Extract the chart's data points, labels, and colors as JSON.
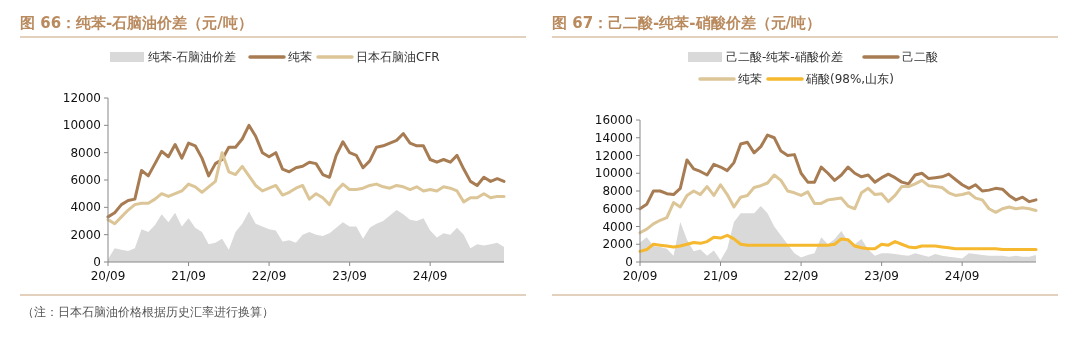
{
  "chart_data": [
    {
      "type": "line",
      "title": "图 66：纯苯-石脑油价差（元/吨）",
      "legend": "top",
      "annotations": [
        "（注：日本石脑油价格根据历史汇率进行换算）"
      ],
      "categories": [
        "20/09",
        null,
        null,
        null,
        null,
        null,
        null,
        null,
        null,
        null,
        null,
        null,
        "21/09",
        null,
        null,
        null,
        null,
        null,
        null,
        null,
        null,
        null,
        null,
        null,
        "22/09",
        null,
        null,
        null,
        null,
        null,
        null,
        null,
        null,
        null,
        null,
        null,
        "23/09",
        null,
        null,
        null,
        null,
        null,
        null,
        null,
        null,
        null,
        null,
        null,
        "24/09",
        null,
        null,
        null,
        null,
        null,
        null,
        null,
        null,
        null,
        null,
        null
      ],
      "ylim": [
        0,
        12000
      ],
      "yticks": [
        0,
        2000,
        4000,
        6000,
        8000,
        10000,
        12000
      ],
      "series": [
        {
          "name": "纯苯-石脑油价差",
          "type": "area",
          "color": "#d9d9d9",
          "values": [
            200,
            1000,
            900,
            800,
            1000,
            2400,
            2200,
            2700,
            3500,
            2900,
            3600,
            2600,
            3200,
            2500,
            2200,
            1300,
            1400,
            1700,
            900,
            2200,
            2800,
            3700,
            2800,
            2600,
            2400,
            2300,
            1500,
            1600,
            1400,
            2000,
            2200,
            2000,
            1900,
            2100,
            2500,
            2900,
            2600,
            2600,
            1700,
            2500,
            2800,
            3000,
            3400,
            3800,
            3500,
            3100,
            3000,
            3200,
            2300,
            1800,
            2100,
            2000,
            2500,
            2000,
            1000,
            1300,
            1200,
            1300,
            1400,
            1100
          ]
        },
        {
          "name": "纯苯",
          "type": "line",
          "color": "#a87c53",
          "values": [
            3300,
            3600,
            4200,
            4500,
            4600,
            6700,
            6300,
            7200,
            8100,
            7700,
            8600,
            7600,
            8700,
            8500,
            7600,
            6300,
            7200,
            7500,
            8400,
            8400,
            9000,
            10000,
            9200,
            8000,
            7700,
            8000,
            6800,
            6600,
            6900,
            7000,
            7300,
            7200,
            6400,
            6200,
            7800,
            8800,
            8000,
            7800,
            6900,
            7400,
            8400,
            8500,
            8700,
            8900,
            9400,
            8700,
            8500,
            8500,
            7500,
            7300,
            7500,
            7300,
            7800,
            6800,
            5900,
            5600,
            6200,
            5900,
            6100,
            5900
          ]
        },
        {
          "name": "日本石脑油CFR",
          "type": "line",
          "color": "#dcc597",
          "values": [
            3100,
            2800,
            3300,
            3800,
            4200,
            4300,
            4300,
            4600,
            5000,
            4800,
            5000,
            5200,
            5700,
            5500,
            5100,
            5500,
            5900,
            8000,
            6600,
            6400,
            7000,
            6300,
            5600,
            5200,
            5400,
            5600,
            4900,
            5100,
            5400,
            5600,
            4600,
            5000,
            4700,
            4200,
            5200,
            5700,
            5300,
            5300,
            5400,
            5600,
            5700,
            5500,
            5400,
            5600,
            5500,
            5300,
            5500,
            5200,
            5300,
            5200,
            5500,
            5400,
            5200,
            4400,
            4700,
            4700,
            5000,
            4700,
            4800,
            4800
          ]
        }
      ]
    },
    {
      "type": "line",
      "title": "图 67：己二酸-纯苯-硝酸价差（元/吨）",
      "legend": "top",
      "categories": [
        "20/09",
        null,
        null,
        null,
        null,
        null,
        null,
        null,
        null,
        null,
        null,
        null,
        "21/09",
        null,
        null,
        null,
        null,
        null,
        null,
        null,
        null,
        null,
        null,
        null,
        "22/09",
        null,
        null,
        null,
        null,
        null,
        null,
        null,
        null,
        null,
        null,
        null,
        "23/09",
        null,
        null,
        null,
        null,
        null,
        null,
        null,
        null,
        null,
        null,
        null,
        "24/09",
        null,
        null,
        null,
        null,
        null,
        null,
        null,
        null,
        null,
        null,
        null
      ],
      "ylim": [
        0,
        16000
      ],
      "yticks": [
        0,
        2000,
        4000,
        6000,
        8000,
        10000,
        12000,
        14000,
        16000
      ],
      "series": [
        {
          "name": "己二酸-纯苯-硝酸价差",
          "type": "area",
          "color": "#d9d9d9",
          "values": [
            2200,
            2800,
            1800,
            1700,
            1500,
            700,
            4500,
            2500,
            1200,
            1400,
            700,
            1300,
            200,
            1500,
            4500,
            5500,
            5500,
            5500,
            6300,
            5500,
            4000,
            3000,
            2000,
            1000,
            500,
            800,
            1000,
            2800,
            2000,
            2600,
            3500,
            2300,
            2000,
            2600,
            1400,
            700,
            1000,
            1000,
            900,
            800,
            700,
            1000,
            800,
            600,
            900,
            700,
            600,
            500,
            400,
            1000,
            900,
            800,
            700,
            700,
            700,
            600,
            700,
            600,
            600,
            800
          ]
        },
        {
          "name": "己二酸",
          "type": "line",
          "color": "#a87c53",
          "values": [
            6000,
            6500,
            8000,
            8000,
            7700,
            7600,
            8300,
            11500,
            10500,
            10200,
            9800,
            11000,
            10700,
            10300,
            11200,
            13300,
            13500,
            12300,
            13000,
            14300,
            14000,
            12500,
            12000,
            12100,
            10000,
            9000,
            9000,
            10700,
            10000,
            9200,
            9800,
            10700,
            10000,
            9600,
            9800,
            9000,
            9500,
            9900,
            9500,
            9000,
            8800,
            9800,
            10000,
            9400,
            9500,
            9600,
            9900,
            9300,
            8700,
            8300,
            8700,
            8000,
            8100,
            8300,
            8200,
            7500,
            7000,
            7300,
            6800,
            7000
          ]
        },
        {
          "name": "纯苯",
          "type": "line",
          "color": "#dcc597",
          "values": [
            3300,
            3700,
            4300,
            4700,
            5000,
            6700,
            6200,
            7500,
            8000,
            7600,
            8500,
            7500,
            8700,
            7600,
            6200,
            7300,
            7500,
            8400,
            8600,
            8900,
            9800,
            9200,
            8000,
            7800,
            7500,
            7900,
            6600,
            6600,
            7000,
            7100,
            7200,
            6300,
            6000,
            7800,
            8300,
            7600,
            7700,
            6800,
            7500,
            8500,
            8500,
            8800,
            9200,
            8600,
            8500,
            8400,
            7800,
            7500,
            7600,
            7800,
            7200,
            7000,
            6000,
            5600,
            6000,
            6200,
            6000,
            6100,
            6000,
            5800
          ]
        },
        {
          "name": "硝酸(98%,山东)",
          "type": "line",
          "color": "#f5b82e",
          "values": [
            1200,
            1400,
            2000,
            1900,
            1800,
            1700,
            1800,
            2000,
            2200,
            2100,
            2300,
            2800,
            2700,
            3000,
            2600,
            2000,
            1900,
            1900,
            1900,
            1900,
            1900,
            1900,
            1900,
            1900,
            1900,
            1900,
            1900,
            1900,
            1900,
            2000,
            2600,
            2500,
            1800,
            1600,
            1500,
            1500,
            2000,
            1900,
            2300,
            2000,
            1700,
            1600,
            1800,
            1800,
            1800,
            1700,
            1600,
            1500,
            1500,
            1500,
            1500,
            1500,
            1500,
            1500,
            1400,
            1400,
            1400,
            1400,
            1400,
            1400
          ]
        }
      ]
    }
  ]
}
